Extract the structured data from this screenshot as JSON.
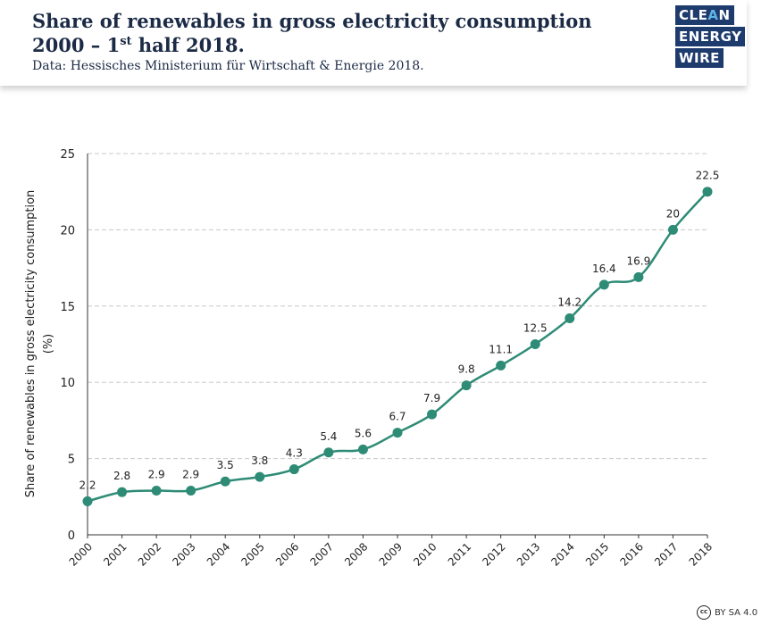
{
  "header": {
    "title_line1": "Share of renewables in gross electricity consumption",
    "title_line2_main": "2000 – 1",
    "title_line2_sup": "st",
    "title_line2_tail": " half 2018.",
    "subtitle": "Data: Hessisches Ministerium für Wirtschaft & Energie 2018."
  },
  "logo": {
    "line1_a": "CLE",
    "line1_b": "A",
    "line1_c": "N",
    "line2_a": "ENERGY",
    "line3_a": "WIRE",
    "color_bg": "#1e3b6e",
    "color_accent": "#5fb4e6"
  },
  "license": {
    "icon": "cc-icon",
    "icon_text": "cc",
    "text": "BY SA 4.0"
  },
  "chart_data": {
    "type": "line",
    "categories": [
      "2000",
      "2001",
      "2002",
      "2003",
      "2004",
      "2005",
      "2006",
      "2007",
      "2008",
      "2009",
      "2010",
      "2011",
      "2012",
      "2013",
      "2014",
      "2015",
      "2016",
      "2017",
      "2018"
    ],
    "values": [
      2.2,
      2.8,
      2.9,
      2.9,
      3.5,
      3.8,
      4.3,
      5.4,
      5.6,
      6.7,
      7.9,
      9.8,
      11.1,
      12.5,
      14.2,
      16.4,
      16.9,
      20,
      22.5
    ],
    "labels": [
      "2.2",
      "2.8",
      "2.9",
      "2.9",
      "3.5",
      "3.8",
      "4.3",
      "5.4",
      "5.6",
      "6.7",
      "7.9",
      "9.8",
      "11.1",
      "12.5",
      "14.2",
      "16.4",
      "16.9",
      "20",
      "22.5"
    ],
    "ylabel_line1": "Share of renewables in gross electricity consumption",
    "ylabel_line2": "(%)",
    "ylim": [
      0,
      25
    ],
    "yticks": [
      "0",
      "5",
      "10",
      "15",
      "20",
      "25"
    ],
    "grid": true,
    "line_color": "#2e8b76"
  }
}
